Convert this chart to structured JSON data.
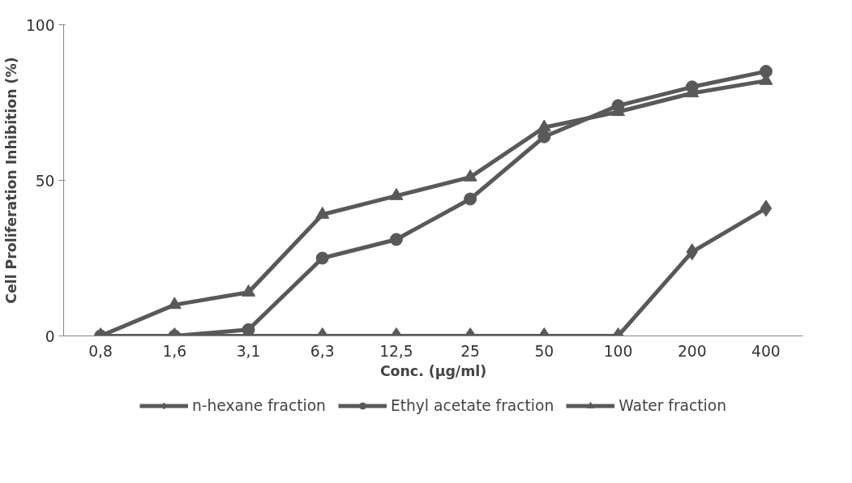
{
  "chart_data": {
    "type": "line",
    "xlabel": "Conc. (µg/ml)",
    "ylabel": "Cell Proliferation Inhibition (%)",
    "categories": [
      "0,8",
      "1,6",
      "3,1",
      "6,3",
      "12,5",
      "25",
      "50",
      "100",
      "200",
      "400"
    ],
    "ylim": [
      0,
      100
    ],
    "yticks": [
      0,
      50,
      100
    ],
    "grid": false,
    "legend": "bottom",
    "series": [
      {
        "name": "n-hexane fraction",
        "color": "#595959",
        "marker": "diamond",
        "values": [
          0,
          0,
          0,
          0,
          0,
          0,
          0,
          0,
          27,
          41
        ]
      },
      {
        "name": "Ethyl acetate fraction",
        "color": "#595959",
        "marker": "circle",
        "values": [
          0,
          0,
          2,
          25,
          31,
          44,
          64,
          74,
          80,
          85
        ]
      },
      {
        "name": "Water fraction",
        "color": "#595959",
        "marker": "triangle",
        "values": [
          0,
          10,
          14,
          39,
          45,
          51,
          67,
          72,
          78,
          82
        ]
      }
    ]
  }
}
